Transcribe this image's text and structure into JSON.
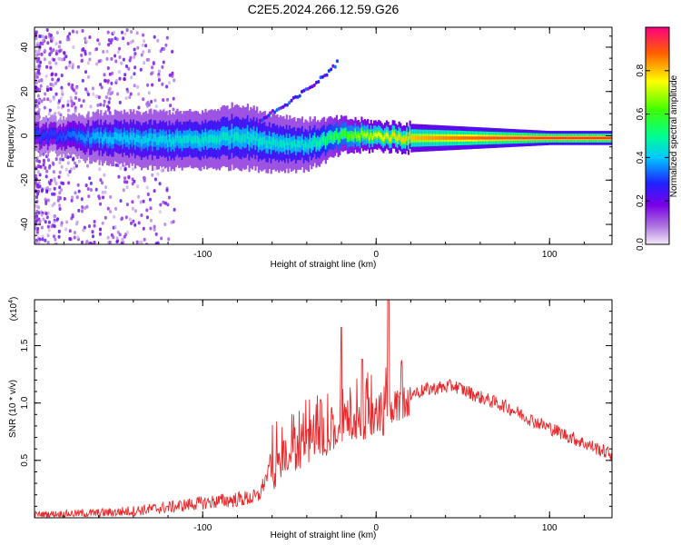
{
  "title": "C2E5.2024.266.12.59.G26",
  "colors": {
    "signal": "#e8282a",
    "axis": "#000000"
  },
  "chart_data": [
    {
      "type": "heatmap",
      "xlabel": "Height of straight line (km)",
      "ylabel": "Frequency (Hz)",
      "xlim": [
        -197,
        136
      ],
      "ylim": [
        -49,
        49
      ],
      "xticks": [
        -100,
        0,
        100
      ],
      "xtick_labels": [
        "-100",
        "0",
        "100"
      ],
      "yticks": [
        -40,
        -20,
        0,
        20,
        40
      ],
      "ytick_labels": [
        "-40",
        "-20",
        "0",
        "20",
        "40"
      ],
      "colorbar": {
        "label": "Normalized spectral amplitude",
        "range": [
          0,
          1
        ],
        "ticks": [
          0.0,
          0.2,
          0.4,
          0.6,
          0.8
        ],
        "tick_labels": [
          "0.0",
          "0.2",
          "0.4",
          "0.6",
          "0.8"
        ]
      },
      "main_band": [
        {
          "x": -185,
          "center": 0,
          "width": 5,
          "amp": 0.3
        },
        {
          "x": -160,
          "center": -1,
          "width": 7,
          "amp": 0.4
        },
        {
          "x": -130,
          "center": -2,
          "width": 8,
          "amp": 0.42
        },
        {
          "x": -100,
          "center": -2,
          "width": 8,
          "amp": 0.45
        },
        {
          "x": -80,
          "center": 0,
          "width": 9,
          "amp": 0.45
        },
        {
          "x": -60,
          "center": -3,
          "width": 8,
          "amp": 0.45
        },
        {
          "x": -40,
          "center": -4,
          "width": 7,
          "amp": 0.45
        },
        {
          "x": -20,
          "center": 0,
          "width": 5,
          "amp": 0.6
        },
        {
          "x": 0,
          "center": 0,
          "width": 4,
          "amp": 0.75
        },
        {
          "x": 20,
          "center": -1,
          "width": 4,
          "amp": 0.8
        },
        {
          "x": 60,
          "center": -1,
          "width": 3,
          "amp": 0.9
        },
        {
          "x": 100,
          "center": -1,
          "width": 2,
          "amp": 0.95
        },
        {
          "x": 136,
          "center": -1,
          "width": 2,
          "amp": 0.95
        }
      ],
      "secondary_trace": [
        {
          "x": -70,
          "y": 5
        },
        {
          "x": -62,
          "y": 10
        },
        {
          "x": -52,
          "y": 14
        },
        {
          "x": -42,
          "y": 20
        },
        {
          "x": -32,
          "y": 26
        },
        {
          "x": -22,
          "y": 34
        }
      ]
    },
    {
      "type": "line",
      "xlabel": "Height of straight line (km)",
      "ylabel": "SNR (10 * v/v)",
      "y_multiplier": "(x10",
      "y_multiplier_exp": "4",
      "y_multiplier_close": ")",
      "xlim": [
        -197,
        136
      ],
      "ylim": [
        0,
        1.9
      ],
      "xticks": [
        -100,
        0,
        100
      ],
      "xtick_labels": [
        "-100",
        "0",
        "100"
      ],
      "yticks": [
        0.5,
        1.0,
        1.5
      ],
      "ytick_labels": [
        "0.5",
        "1.0",
        "1.5"
      ],
      "series": [
        {
          "envelope": [
            {
              "x": -197,
              "y": 0.03
            },
            {
              "x": -160,
              "y": 0.04
            },
            {
              "x": -140,
              "y": 0.06
            },
            {
              "x": -120,
              "y": 0.09
            },
            {
              "x": -100,
              "y": 0.13
            },
            {
              "x": -80,
              "y": 0.16
            },
            {
              "x": -68,
              "y": 0.18
            },
            {
              "x": -62,
              "y": 0.4
            },
            {
              "x": -50,
              "y": 0.55
            },
            {
              "x": -40,
              "y": 0.65
            },
            {
              "x": -30,
              "y": 0.72
            },
            {
              "x": -20,
              "y": 0.8
            },
            {
              "x": -10,
              "y": 0.85
            },
            {
              "x": 0,
              "y": 0.92
            },
            {
              "x": 10,
              "y": 1.0
            },
            {
              "x": 20,
              "y": 1.08
            },
            {
              "x": 30,
              "y": 1.12
            },
            {
              "x": 45,
              "y": 1.15
            },
            {
              "x": 60,
              "y": 1.05
            },
            {
              "x": 75,
              "y": 0.97
            },
            {
              "x": 90,
              "y": 0.85
            },
            {
              "x": 105,
              "y": 0.75
            },
            {
              "x": 120,
              "y": 0.65
            },
            {
              "x": 136,
              "y": 0.55
            }
          ],
          "peaks": [
            {
              "x": -32,
              "y": 1.03
            },
            {
              "x": -20,
              "y": 1.66
            },
            {
              "x": -8,
              "y": 1.38
            },
            {
              "x": 7,
              "y": 1.9
            },
            {
              "x": 4,
              "y": 0.72
            }
          ]
        }
      ]
    }
  ]
}
